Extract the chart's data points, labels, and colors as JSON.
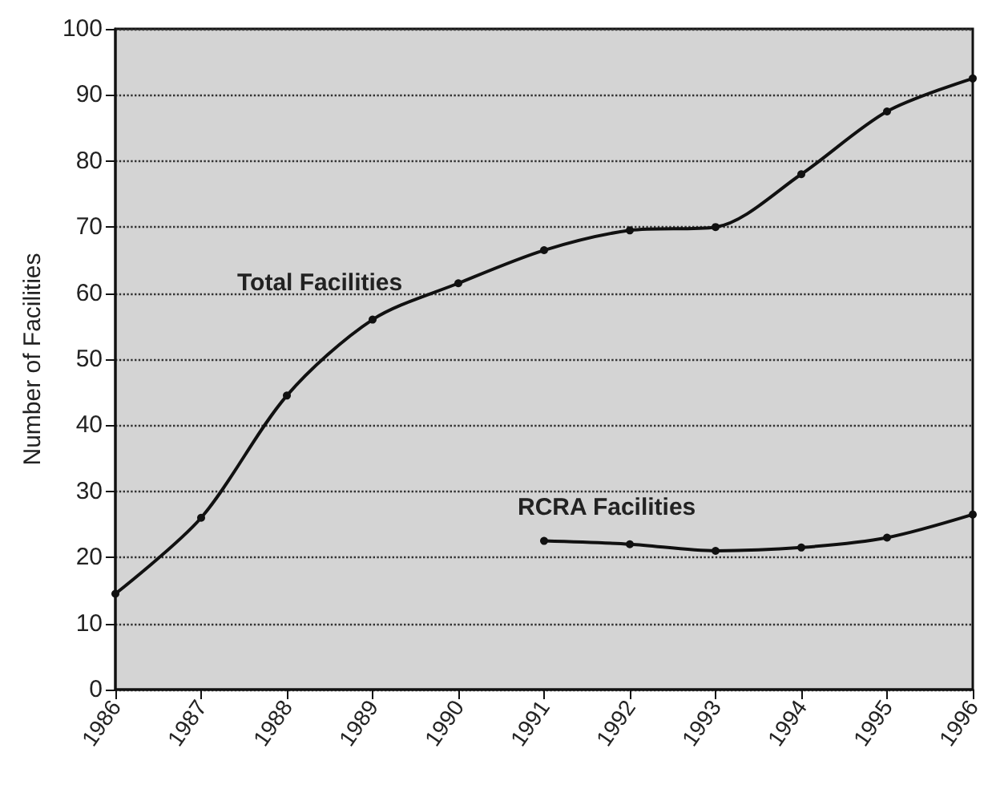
{
  "chart_data": {
    "type": "line",
    "ylabel": "Number of Facilities",
    "categories": [
      "1986",
      "1987",
      "1988",
      "1989",
      "1990",
      "1991",
      "1992",
      "1993",
      "1994",
      "1995",
      "1996"
    ],
    "series": [
      {
        "name": "Total Facilities",
        "color": "#111111",
        "values": [
          14.5,
          26,
          44.5,
          56,
          61.5,
          66.5,
          69.5,
          70,
          78,
          87.5,
          92.5
        ]
      },
      {
        "name": "RCRA Facilities",
        "color": "#111111",
        "values": [
          null,
          null,
          null,
          null,
          null,
          22.5,
          22,
          21,
          21.5,
          23,
          26.5
        ]
      }
    ],
    "ylim": [
      0,
      100
    ],
    "yticks": [
      0,
      10,
      20,
      30,
      40,
      50,
      60,
      70,
      80,
      90,
      100
    ],
    "grid": "y",
    "legend": false,
    "marker": "circle",
    "line_style": "solid"
  }
}
